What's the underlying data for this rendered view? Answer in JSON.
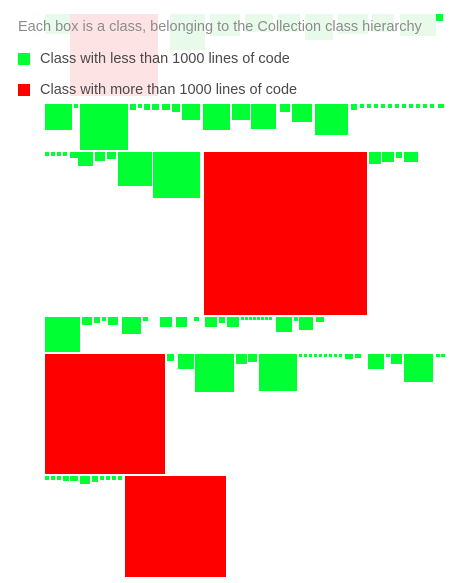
{
  "legend": {
    "caption": "Each box is a class, belonging to the Collection class hierarchy",
    "small_label": "Class with less than 1000 lines of code",
    "large_label": "Class with more than 1000 lines of code"
  },
  "colors": {
    "small": "#00ff33",
    "large": "#ff0000",
    "faded_small": "#e8fbea",
    "faded_large": "#fde3e3"
  }
}
